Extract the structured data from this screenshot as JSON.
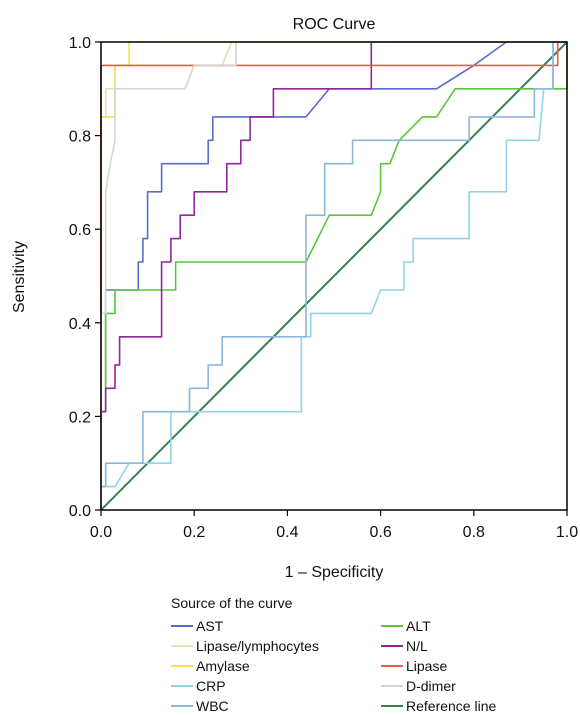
{
  "chart_data": {
    "type": "line",
    "title": "ROC Curve",
    "xlabel": "1 – Specificity",
    "ylabel": "Sensitivity",
    "xlim": [
      0,
      1
    ],
    "ylim": [
      0,
      1
    ],
    "xticks": [
      "0.0",
      "0.2",
      "0.4",
      "0.6",
      "0.8",
      "1.0"
    ],
    "yticks": [
      "0.0",
      "0.2",
      "0.4",
      "0.6",
      "0.8",
      "1.0"
    ],
    "grid": false,
    "legend_title": "Source of the curve",
    "legend_position": "bottom",
    "series": [
      {
        "name": "AST",
        "color": "#5b6bc7",
        "points": [
          [
            0,
            0
          ],
          [
            0,
            0.21
          ],
          [
            0.01,
            0.21
          ],
          [
            0.01,
            0.42
          ],
          [
            0.01,
            0.47
          ],
          [
            0.08,
            0.47
          ],
          [
            0.08,
            0.53
          ],
          [
            0.09,
            0.53
          ],
          [
            0.09,
            0.58
          ],
          [
            0.1,
            0.58
          ],
          [
            0.1,
            0.68
          ],
          [
            0.13,
            0.68
          ],
          [
            0.13,
            0.74
          ],
          [
            0.15,
            0.74
          ],
          [
            0.15,
            0.74
          ],
          [
            0.23,
            0.74
          ],
          [
            0.23,
            0.79
          ],
          [
            0.24,
            0.79
          ],
          [
            0.24,
            0.84
          ],
          [
            0.44,
            0.84
          ],
          [
            0.49,
            0.9
          ],
          [
            0.72,
            0.9
          ],
          [
            0.8,
            0.95
          ],
          [
            0.87,
            1.0
          ],
          [
            1,
            1
          ]
        ]
      },
      {
        "name": "ALT",
        "color": "#58c53c",
        "points": [
          [
            0,
            0
          ],
          [
            0,
            0.21
          ],
          [
            0.01,
            0.21
          ],
          [
            0.01,
            0.42
          ],
          [
            0.03,
            0.42
          ],
          [
            0.03,
            0.47
          ],
          [
            0.14,
            0.47
          ],
          [
            0.14,
            0.47
          ],
          [
            0.16,
            0.47
          ],
          [
            0.16,
            0.53
          ],
          [
            0.44,
            0.53
          ],
          [
            0.49,
            0.63
          ],
          [
            0.58,
            0.63
          ],
          [
            0.6,
            0.68
          ],
          [
            0.6,
            0.74
          ],
          [
            0.62,
            0.74
          ],
          [
            0.64,
            0.79
          ],
          [
            0.69,
            0.84
          ],
          [
            0.72,
            0.84
          ],
          [
            0.76,
            0.9
          ],
          [
            0.9,
            0.9
          ],
          [
            0.98,
            0.9
          ],
          [
            1,
            0.9
          ],
          [
            1,
            1
          ]
        ]
      },
      {
        "name": "Lipase/lymphocytes",
        "color": "#e6dfb0",
        "points": [
          [
            0,
            0
          ],
          [
            0,
            0.84
          ],
          [
            0.01,
            0.84
          ],
          [
            0.01,
            0.9
          ],
          [
            0.03,
            0.9
          ],
          [
            0.03,
            0.95
          ],
          [
            0.26,
            0.95
          ],
          [
            0.28,
            1.0
          ],
          [
            1,
            1
          ]
        ]
      },
      {
        "name": "N/L",
        "color": "#8e2898",
        "points": [
          [
            0,
            0
          ],
          [
            0,
            0.21
          ],
          [
            0.01,
            0.21
          ],
          [
            0.01,
            0.26
          ],
          [
            0.03,
            0.26
          ],
          [
            0.03,
            0.31
          ],
          [
            0.04,
            0.31
          ],
          [
            0.04,
            0.37
          ],
          [
            0.13,
            0.37
          ],
          [
            0.13,
            0.42
          ],
          [
            0.13,
            0.47
          ],
          [
            0.13,
            0.53
          ],
          [
            0.15,
            0.53
          ],
          [
            0.15,
            0.58
          ],
          [
            0.17,
            0.58
          ],
          [
            0.17,
            0.63
          ],
          [
            0.2,
            0.63
          ],
          [
            0.2,
            0.68
          ],
          [
            0.27,
            0.68
          ],
          [
            0.27,
            0.74
          ],
          [
            0.3,
            0.74
          ],
          [
            0.3,
            0.79
          ],
          [
            0.32,
            0.79
          ],
          [
            0.32,
            0.84
          ],
          [
            0.37,
            0.84
          ],
          [
            0.37,
            0.9
          ],
          [
            0.58,
            0.9
          ],
          [
            0.58,
            1.0
          ],
          [
            1,
            1
          ]
        ]
      },
      {
        "name": "Amylase",
        "color": "#f2e258",
        "points": [
          [
            0,
            0
          ],
          [
            0,
            0.84
          ],
          [
            0.03,
            0.84
          ],
          [
            0.03,
            0.95
          ],
          [
            0.06,
            0.95
          ],
          [
            0.06,
            1.0
          ],
          [
            1,
            1
          ]
        ]
      },
      {
        "name": "Lipase",
        "color": "#e85a4a",
        "points": [
          [
            0,
            0
          ],
          [
            0,
            0.95
          ],
          [
            0.98,
            0.95
          ],
          [
            0.98,
            1.0
          ],
          [
            1,
            1
          ]
        ]
      },
      {
        "name": "CRP",
        "color": "#8fd5e4",
        "points": [
          [
            0,
            0
          ],
          [
            0,
            0.05
          ],
          [
            0.03,
            0.05
          ],
          [
            0.06,
            0.1
          ],
          [
            0.15,
            0.1
          ],
          [
            0.15,
            0.21
          ],
          [
            0.43,
            0.21
          ],
          [
            0.43,
            0.37
          ],
          [
            0.45,
            0.37
          ],
          [
            0.45,
            0.42
          ],
          [
            0.58,
            0.42
          ],
          [
            0.6,
            0.47
          ],
          [
            0.65,
            0.47
          ],
          [
            0.65,
            0.53
          ],
          [
            0.67,
            0.53
          ],
          [
            0.67,
            0.58
          ],
          [
            0.79,
            0.58
          ],
          [
            0.79,
            0.68
          ],
          [
            0.87,
            0.68
          ],
          [
            0.87,
            0.79
          ],
          [
            0.94,
            0.79
          ],
          [
            0.95,
            0.9
          ],
          [
            0.97,
            0.9
          ],
          [
            0.97,
            1.0
          ],
          [
            1,
            1
          ]
        ]
      },
      {
        "name": "D-dimer",
        "color": "#d4d4d4",
        "points": [
          [
            0,
            0
          ],
          [
            0,
            0.42
          ],
          [
            0.01,
            0.42
          ],
          [
            0.01,
            0.68
          ],
          [
            0.02,
            0.74
          ],
          [
            0.03,
            0.79
          ],
          [
            0.03,
            0.9
          ],
          [
            0.06,
            0.9
          ],
          [
            0.18,
            0.9
          ],
          [
            0.2,
            0.95
          ],
          [
            0.29,
            0.95
          ],
          [
            0.29,
            1.0
          ],
          [
            1,
            1
          ]
        ]
      },
      {
        "name": "WBC",
        "color": "#8cb6dc",
        "points": [
          [
            0,
            0
          ],
          [
            0,
            0.05
          ],
          [
            0.01,
            0.05
          ],
          [
            0.01,
            0.1
          ],
          [
            0.06,
            0.1
          ],
          [
            0.06,
            0.1
          ],
          [
            0.09,
            0.1
          ],
          [
            0.09,
            0.21
          ],
          [
            0.19,
            0.21
          ],
          [
            0.19,
            0.26
          ],
          [
            0.23,
            0.26
          ],
          [
            0.23,
            0.31
          ],
          [
            0.26,
            0.31
          ],
          [
            0.26,
            0.37
          ],
          [
            0.44,
            0.37
          ],
          [
            0.44,
            0.63
          ],
          [
            0.48,
            0.63
          ],
          [
            0.48,
            0.74
          ],
          [
            0.54,
            0.74
          ],
          [
            0.54,
            0.79
          ],
          [
            0.79,
            0.79
          ],
          [
            0.79,
            0.84
          ],
          [
            0.93,
            0.84
          ],
          [
            0.93,
            0.9
          ],
          [
            0.97,
            0.9
          ],
          [
            0.97,
            1.0
          ],
          [
            1,
            1
          ]
        ]
      },
      {
        "name": "Reference line",
        "color": "#3a7d4f",
        "points": [
          [
            0,
            0
          ],
          [
            1,
            1
          ]
        ]
      }
    ]
  }
}
